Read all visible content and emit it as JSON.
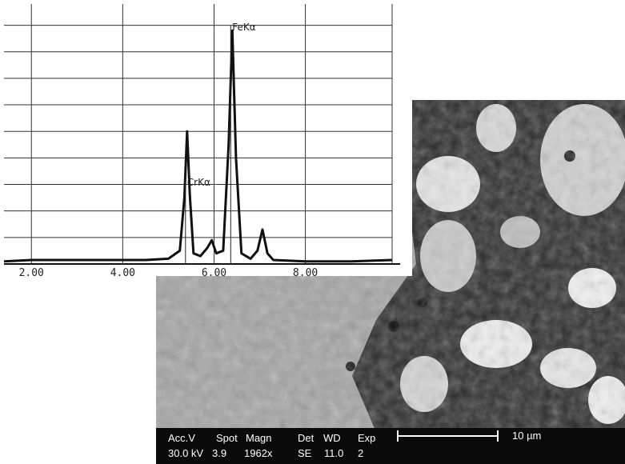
{
  "chart_data": {
    "type": "line",
    "x": [
      1.4,
      2.0,
      3.0,
      4.0,
      4.5,
      5.0,
      5.25,
      5.35,
      5.41,
      5.47,
      5.55,
      5.7,
      5.85,
      5.95,
      6.05,
      6.2,
      6.32,
      6.4,
      6.48,
      6.6,
      6.8,
      6.95,
      7.06,
      7.17,
      7.3,
      8.0,
      9.0,
      9.9
    ],
    "values": [
      0.1,
      0.15,
      0.15,
      0.15,
      0.15,
      0.2,
      0.5,
      2.5,
      5.0,
      2.6,
      0.4,
      0.3,
      0.6,
      0.9,
      0.4,
      0.5,
      4.5,
      8.8,
      4.0,
      0.4,
      0.2,
      0.5,
      1.3,
      0.4,
      0.15,
      0.1,
      0.1,
      0.15
    ],
    "color": "#111111",
    "xlim": [
      1.4,
      9.9
    ],
    "xticks": [
      {
        "value": 2,
        "label": "2.00"
      },
      {
        "value": 4,
        "label": "4.00"
      },
      {
        "value": 6,
        "label": "6.00"
      },
      {
        "value": 8,
        "label": "8.00"
      }
    ],
    "ylim": [
      0,
      9.5
    ],
    "yticks": [
      1,
      2,
      3,
      4,
      5,
      6,
      7,
      8,
      9
    ],
    "grid": true,
    "annotations": [
      {
        "text": "FeKα",
        "x": 6.4
      },
      {
        "text": "CrKα",
        "x": 5.41
      }
    ]
  },
  "micrograph": {
    "info_labels": [
      "Acc.V",
      "Spot",
      "Magn",
      "Det",
      "WD",
      "Exp"
    ],
    "info_values": [
      "30.0 kV",
      "3.9",
      "1962x",
      "SE",
      "11.0",
      "2"
    ],
    "scale_bar": "10 µm"
  }
}
